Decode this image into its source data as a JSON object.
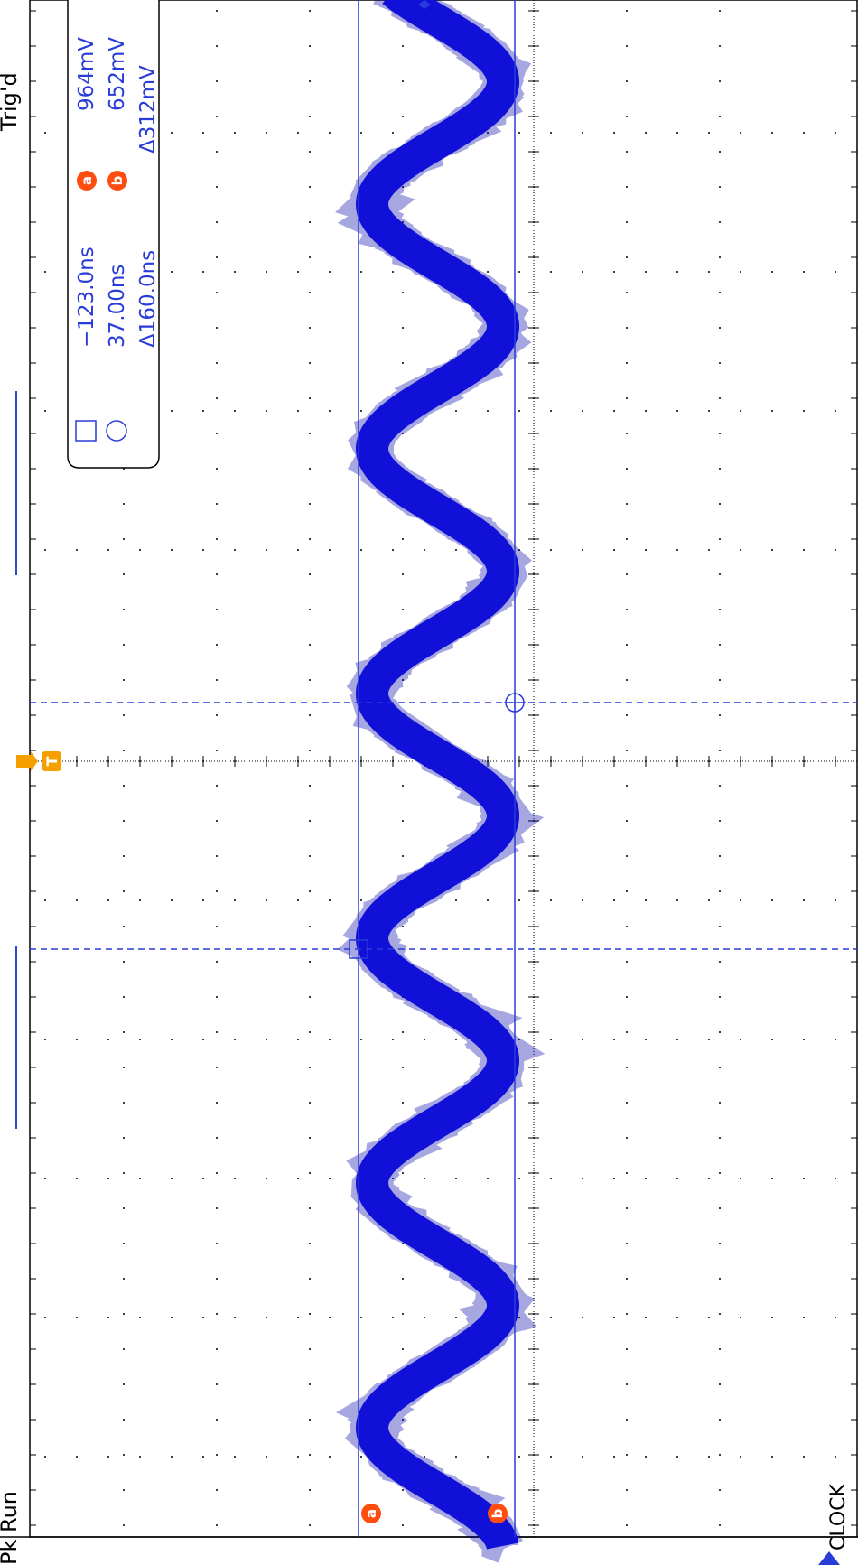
{
  "status": {
    "top_label": "Trig'd",
    "bottom_label": "Pk Run"
  },
  "channel": {
    "label": "CLOCK",
    "color": "#1010d8"
  },
  "trigger": {
    "label": "T",
    "color": "#f5a000"
  },
  "cursor_readout": {
    "time_a": "−123.0ns",
    "time_b": "37.00ns",
    "time_delta": "Δ160.0ns",
    "volt_a_marker": "a",
    "volt_b_marker": "b",
    "volt_a": "964mV",
    "volt_b": "652mV",
    "volt_delta": "Δ312mV",
    "icon_a": "square-cursor-icon",
    "icon_b": "circle-cursor-icon"
  },
  "cursors": {
    "a_marker": "a",
    "b_marker": "b",
    "marker_color": "#ff4d10",
    "line_color": "#2a3cd8"
  },
  "chart_data": {
    "type": "line",
    "title": "",
    "xlabel": "",
    "ylabel": "",
    "grid": true,
    "series": [
      {
        "values_desc": "",
        "peak_mV": 964,
        "trough_mV": 652
      }
    ],
    "cursor_times_ns": [
      -123.0,
      37.0
    ],
    "cursor_volts_mV": [
      964,
      652
    ]
  }
}
